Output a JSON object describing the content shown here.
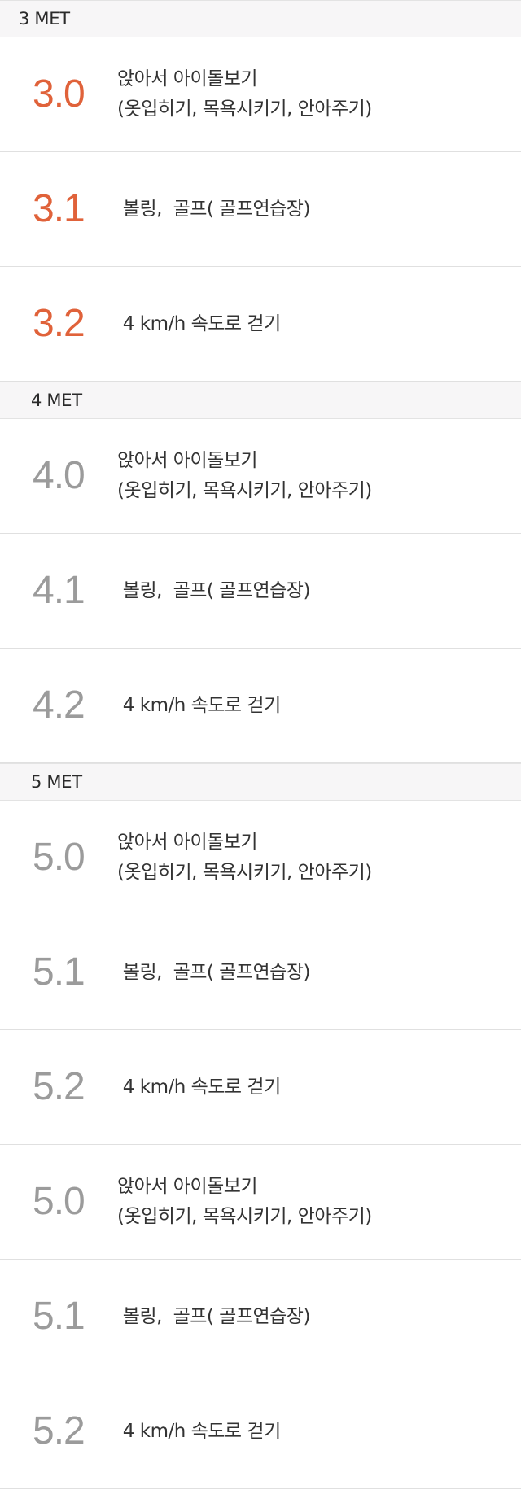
{
  "colors": {
    "accent": "#e0623a",
    "muted": "#9b9b9b",
    "header_bg": "#f7f6f7",
    "divider": "#e0e0e0"
  },
  "sections": [
    {
      "header": "3 MET",
      "rows": [
        {
          "value": "3.0",
          "lines": [
            "앉아서 아이돌보기",
            "(옷입히기, 목욕시키기, 안아주기)"
          ]
        },
        {
          "value": "3.1",
          "lines": [
            " 볼링,  골프( 골프연습장)"
          ]
        },
        {
          "value": "3.2",
          "lines": [
            " 4 km/h 속도로 걷기"
          ]
        }
      ]
    },
    {
      "header": "4 MET",
      "rows": [
        {
          "value": "4.0",
          "lines": [
            "앉아서 아이돌보기",
            "(옷입히기, 목욕시키기, 안아주기)"
          ]
        },
        {
          "value": "4.1",
          "lines": [
            " 볼링,  골프( 골프연습장)"
          ]
        },
        {
          "value": "4.2",
          "lines": [
            " 4 km/h 속도로 걷기"
          ]
        }
      ]
    },
    {
      "header": "5 MET",
      "rows": [
        {
          "value": "5.0",
          "lines": [
            "앉아서 아이돌보기",
            "(옷입히기, 목욕시키기, 안아주기)"
          ]
        },
        {
          "value": "5.1",
          "lines": [
            " 볼링,  골프( 골프연습장)"
          ]
        },
        {
          "value": "5.2",
          "lines": [
            " 4 km/h 속도로 걷기"
          ]
        },
        {
          "value": "5.0",
          "lines": [
            "앉아서 아이돌보기",
            "(옷입히기, 목욕시키기, 안아주기)"
          ]
        },
        {
          "value": "5.1",
          "lines": [
            " 볼링,  골프( 골프연습장)"
          ]
        },
        {
          "value": "5.2",
          "lines": [
            " 4 km/h 속도로 걷기"
          ]
        }
      ]
    }
  ]
}
